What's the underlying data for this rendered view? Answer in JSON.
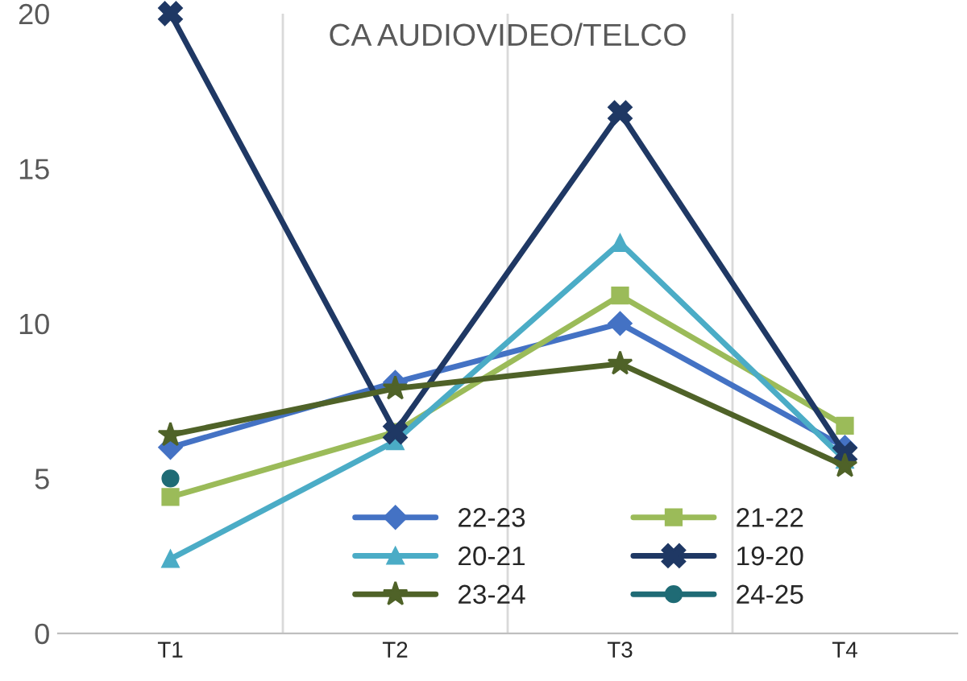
{
  "chart_data": {
    "type": "line",
    "title": "CA AUDIOVIDEO/TELCO",
    "categories": [
      "T1",
      "T2",
      "T3",
      "T4"
    ],
    "series": [
      {
        "name": "22-23",
        "color": "#4472c4",
        "marker": "diamond",
        "values": [
          6.0,
          8.1,
          10.0,
          6.0
        ]
      },
      {
        "name": "21-22",
        "color": "#9bbb59",
        "marker": "square",
        "values": [
          4.4,
          6.5,
          10.9,
          6.7
        ]
      },
      {
        "name": "20-21",
        "color": "#4bacc6",
        "marker": "triangle",
        "values": [
          2.4,
          6.2,
          12.6,
          5.6
        ]
      },
      {
        "name": "19-20",
        "color": "#1f3864",
        "marker": "cross",
        "values": [
          20,
          6.5,
          16.8,
          5.8
        ]
      },
      {
        "name": "23-24",
        "color": "#4f6228",
        "marker": "star",
        "values": [
          6.4,
          7.9,
          8.7,
          5.4
        ]
      },
      {
        "name": "24-25",
        "color": "#1f6b75",
        "marker": "circle",
        "values": [
          5.0,
          null,
          null,
          null
        ]
      }
    ],
    "ylim": [
      0,
      20
    ],
    "yticks": [
      0,
      5,
      10,
      15,
      20
    ],
    "grid": "x",
    "legend": "bottom",
    "line_style": "solid"
  }
}
